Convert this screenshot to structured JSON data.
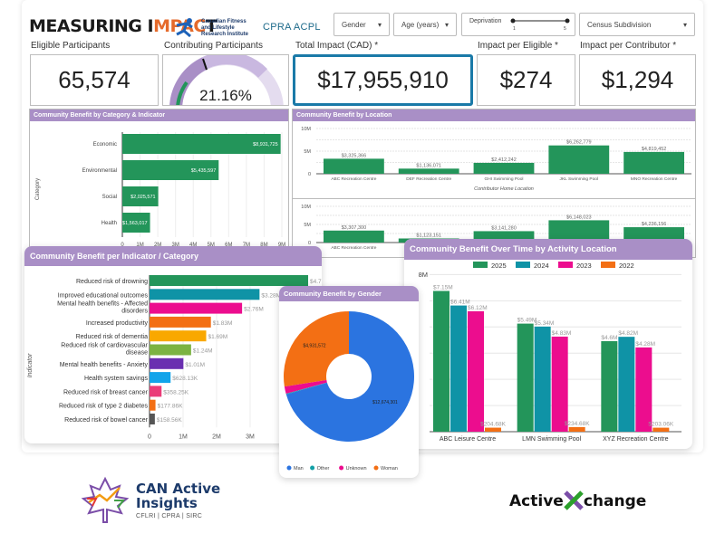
{
  "header": {
    "title_part1": "MEASURING I",
    "title_part2": "MPAC",
    "title_part3": "T",
    "partner_logo_1": [
      "Canadian Fitness",
      "and Lifestyle",
      "Research Institute"
    ],
    "partner_logo_2": "CPRA ACPL"
  },
  "filters": {
    "gender": "Gender",
    "age": "Age (years)",
    "deprivation": {
      "label": "Deprivation",
      "min": "1",
      "max": "5"
    },
    "census": "Census Subdivision"
  },
  "kpis": {
    "eligible": {
      "label": "Eligible Participants",
      "value": "65,574"
    },
    "contributing": {
      "label": "Contributing Participants",
      "value": "21.16%",
      "fraction": 0.2116
    },
    "total": {
      "label": "Total Impact (CAD) *",
      "value": "$17,955,910"
    },
    "per_eligible": {
      "label": "Impact per Eligible *",
      "value": "$274"
    },
    "per_contributor": {
      "label": "Impact per Contributor *",
      "value": "$1,294"
    }
  },
  "colors": {
    "green": "#23955a",
    "teal": "#0f93a6",
    "magenta": "#ec0d8e",
    "orange": "#f36f14",
    "purple_header": "#a98fc6",
    "blue": "#2b74e0"
  },
  "chart_data": [
    {
      "id": "category",
      "type": "bar",
      "orientation": "horizontal",
      "title": "Community Benefit by Category & Indicator",
      "ylabel": "Category",
      "categories": [
        "Economic",
        "Environmental",
        "Social",
        "Health"
      ],
      "values": [
        8931725,
        5435597,
        2025571,
        1563017
      ],
      "labels": [
        "$8,931,725",
        "$5,435,597",
        "$2,025,571",
        "$1,563,017"
      ],
      "xticks": [
        "0",
        "1M",
        "2M",
        "3M",
        "4M",
        "5M",
        "6M",
        "7M",
        "8M",
        "9M"
      ],
      "xlim": [
        0,
        9000000
      ]
    },
    {
      "id": "location",
      "type": "bar",
      "title": "Community Benefit by Location",
      "xlabel": "Contributor Home Location",
      "categories": [
        "ABC Recreation Centre",
        "DEF Recreation Centre",
        "GHI Swimming Pool",
        "JKL Swimming Pool",
        "MNO Recreation Centre"
      ],
      "values": [
        3325366,
        1136071,
        2412242,
        6262779,
        4819452
      ],
      "labels": [
        "$3,325,366",
        "$1,136,071",
        "$2,412,242",
        "$6,262,779",
        "$4,819,452"
      ],
      "yticks": [
        "0",
        "5M",
        "10M"
      ],
      "ylim": [
        0,
        10000000
      ]
    },
    {
      "id": "location2",
      "type": "bar",
      "title": "",
      "categories": [
        "ABC Recreation Centre",
        "DEF Recreation Centre",
        "GHI Swimming Pool",
        "JKL Swimming Pool",
        "MNO Recreation Centre"
      ],
      "values": [
        3307300,
        1123151,
        3141280,
        6148023,
        4236156
      ],
      "labels": [
        "$3,307,300",
        "$1,123,151",
        "$3,141,280",
        "$6,148,023",
        "$4,236,156"
      ],
      "yticks": [
        "0",
        "5M",
        "10M"
      ],
      "ylim": [
        0,
        10000000
      ]
    },
    {
      "id": "indicator",
      "type": "bar",
      "orientation": "horizontal",
      "title": "Community Benefit per Indicator / Category",
      "ylabel": "Indicator",
      "categories": [
        "Reduced risk of drowning",
        "Improved educational outcomes",
        "Mental health benefits - Affected disorders",
        "Increased productivity",
        "Reduced risk of dementia",
        "Reduced risk of cardiovascular disease",
        "Mental health benefits - Anxiety",
        "Health system savings",
        "Reduced risk of breast cancer",
        "Reduced risk of type 2 diabetes",
        "Reduced risk of bowel cancer"
      ],
      "values": [
        4730000,
        3280000,
        2760000,
        1830000,
        1690000,
        1240000,
        1010000,
        628130,
        358250,
        177860,
        158560
      ],
      "labels": [
        "$4.73M",
        "$3.28M",
        "$2.76M",
        "$1.83M",
        "$1.69M",
        "$1.24M",
        "$1.01M",
        "$628.13K",
        "$358.25K",
        "$177.86K",
        "$158.56K"
      ],
      "bar_colors": [
        "#23955a",
        "#0f93a6",
        "#ec0d8e",
        "#f36f14",
        "#f9a800",
        "#7cb342",
        "#6a2fb0",
        "#12a4ea",
        "#ea3c78",
        "#f36f14",
        "#555555"
      ],
      "xticks": [
        "0",
        "1M",
        "2M",
        "3M",
        "4M"
      ],
      "xlim": [
        0,
        4700000
      ]
    },
    {
      "id": "gender",
      "type": "pie",
      "donut": true,
      "title": "Community Benefit by Gender",
      "categories": [
        "Man",
        "Other",
        "Unknown",
        "Woman"
      ],
      "values": [
        12674301,
        30000,
        320000,
        4931572
      ],
      "labels": [
        "$12,674,301",
        "",
        "",
        "$4,931,572"
      ],
      "colors": [
        "#2b74e0",
        "#13a0a6",
        "#ec0d8e",
        "#f36f14"
      ],
      "legend": "bottom"
    },
    {
      "id": "overtime",
      "type": "bar",
      "title": "Community Benefit Over Time by Activity Location",
      "categories": [
        "ABC Leisure Centre",
        "LMN Swimming Pool",
        "XYZ Recreation Centre"
      ],
      "series": [
        {
          "name": "2025",
          "values": [
            7150000,
            5490000,
            4600000
          ],
          "labels": [
            "$7.15M",
            "$5.49M",
            "$4.6M"
          ],
          "color": "#23955a"
        },
        {
          "name": "2024",
          "values": [
            6410000,
            5340000,
            4820000
          ],
          "labels": [
            "$6.41M",
            "$5.34M",
            "$4.82M"
          ],
          "color": "#0f93a6"
        },
        {
          "name": "2023",
          "values": [
            6120000,
            4830000,
            4280000
          ],
          "labels": [
            "$6.12M",
            "$4.83M",
            "$4.28M"
          ],
          "color": "#ec0d8e"
        },
        {
          "name": "2022",
          "values": [
            204680,
            234680,
            203060
          ],
          "labels": [
            "$204.68K",
            "$234.68K",
            "$203.06K"
          ],
          "color": "#f36f14"
        }
      ],
      "yticks": [
        "8M"
      ],
      "ylim": [
        0,
        8000000
      ],
      "legend": "top"
    }
  ],
  "footer": {
    "logo_left_line1": "CAN Active",
    "logo_left_line2": "Insights",
    "logo_left_sub": "CFLRI | CPRA | SIRC",
    "logo_right_part1": "Active",
    "logo_right_part2": "change"
  }
}
